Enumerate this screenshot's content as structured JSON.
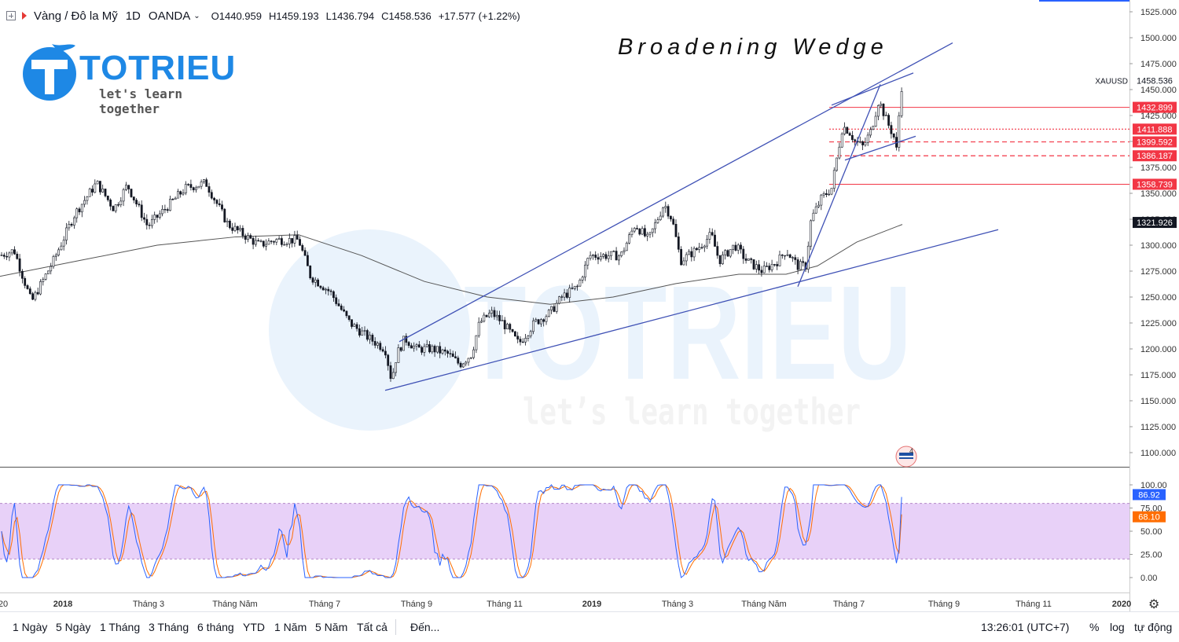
{
  "header": {
    "symbol": "Vàng / Đô la Mỹ",
    "timeframe": "1D",
    "broker": "OANDA",
    "open": "O1440.959",
    "high": "H1459.193",
    "low": "L1436.794",
    "close": "C1458.536",
    "change": "+17.577 (+1.22%)"
  },
  "logo": {
    "name": "TOTRIEU",
    "tagline": "let's learn together"
  },
  "watermark": {
    "name": "TOTRIEU",
    "tagline": "let’s learn together"
  },
  "annotation_title": "Broadening Wedge",
  "chart_data": {
    "type": "candlestick",
    "symbol_label": "XAUUSD",
    "last_price": 1458.536,
    "price_axis": {
      "ylim": [
        1088,
        1530
      ],
      "ticks": [
        1100,
        1125,
        1150,
        1175,
        1200,
        1225,
        1250,
        1275,
        1300,
        1325,
        1350,
        1375,
        1400,
        1425,
        1450,
        1475,
        1500,
        1525
      ]
    },
    "x_ticks": [
      "20",
      "2018",
      "Tháng 3",
      "Tháng Năm",
      "Tháng 7",
      "Tháng 9",
      "Tháng 11",
      "2019",
      "Tháng 3",
      "Tháng Năm",
      "Tháng 7",
      "Tháng 9",
      "Tháng 11",
      "2020"
    ],
    "price_path": [
      [
        0,
        1290
      ],
      [
        18,
        1295
      ],
      [
        40,
        1245
      ],
      [
        68,
        1285
      ],
      [
        95,
        1330
      ],
      [
        123,
        1360
      ],
      [
        145,
        1335
      ],
      [
        162,
        1358
      ],
      [
        188,
        1318
      ],
      [
        210,
        1335
      ],
      [
        236,
        1355
      ],
      [
        262,
        1360
      ],
      [
        290,
        1320
      ],
      [
        310,
        1310
      ],
      [
        330,
        1300
      ],
      [
        350,
        1305
      ],
      [
        380,
        1305
      ],
      [
        395,
        1270
      ],
      [
        420,
        1255
      ],
      [
        445,
        1225
      ],
      [
        470,
        1210
      ],
      [
        490,
        1200
      ],
      [
        498,
        1170
      ],
      [
        505,
        1195
      ],
      [
        515,
        1210
      ],
      [
        530,
        1200
      ],
      [
        550,
        1200
      ],
      [
        570,
        1195
      ],
      [
        585,
        1185
      ],
      [
        600,
        1195
      ],
      [
        610,
        1225
      ],
      [
        625,
        1235
      ],
      [
        640,
        1225
      ],
      [
        660,
        1205
      ],
      [
        680,
        1225
      ],
      [
        700,
        1235
      ],
      [
        715,
        1250
      ],
      [
        735,
        1260
      ],
      [
        750,
        1290
      ],
      [
        770,
        1290
      ],
      [
        790,
        1290
      ],
      [
        808,
        1320
      ],
      [
        825,
        1305
      ],
      [
        845,
        1340
      ],
      [
        855,
        1325
      ],
      [
        866,
        1285
      ],
      [
        885,
        1295
      ],
      [
        905,
        1310
      ],
      [
        915,
        1285
      ],
      [
        935,
        1300
      ],
      [
        950,
        1285
      ],
      [
        970,
        1275
      ],
      [
        990,
        1285
      ],
      [
        1000,
        1295
      ],
      [
        1015,
        1280
      ],
      [
        1025,
        1280
      ],
      [
        1032,
        1325
      ],
      [
        1045,
        1345
      ],
      [
        1058,
        1355
      ],
      [
        1065,
        1385
      ],
      [
        1072,
        1415
      ],
      [
        1080,
        1410
      ],
      [
        1088,
        1400
      ],
      [
        1098,
        1395
      ],
      [
        1108,
        1410
      ],
      [
        1118,
        1440
      ],
      [
        1128,
        1420
      ],
      [
        1137,
        1405
      ],
      [
        1141,
        1390
      ],
      [
        1145,
        1440
      ],
      [
        1148,
        1458
      ]
    ],
    "sma_path": [
      [
        0,
        1270
      ],
      [
        100,
        1285
      ],
      [
        200,
        1300
      ],
      [
        300,
        1308
      ],
      [
        380,
        1310
      ],
      [
        460,
        1290
      ],
      [
        540,
        1265
      ],
      [
        620,
        1250
      ],
      [
        700,
        1243
      ],
      [
        780,
        1250
      ],
      [
        860,
        1263
      ],
      [
        940,
        1272
      ],
      [
        1000,
        1272
      ],
      [
        1040,
        1280
      ],
      [
        1090,
        1303
      ],
      [
        1148,
        1320
      ]
    ],
    "trendlines": [
      [
        [
          490,
          1160
        ],
        [
          1270,
          1315
        ]
      ],
      [
        [
          508,
          1207
        ],
        [
          1212,
          1495
        ]
      ],
      [
        [
          1015,
          1260
        ],
        [
          1120,
          1455
        ]
      ],
      [
        [
          1058,
          1435
        ],
        [
          1162,
          1466
        ]
      ],
      [
        [
          1075,
          1382
        ],
        [
          1165,
          1405
        ]
      ]
    ],
    "price_levels": [
      {
        "value": 1432.899,
        "label": "1432.899",
        "style": "solid",
        "color": "#f23645"
      },
      {
        "value": 1411.888,
        "label": "1411.888",
        "style": "dotted",
        "color": "#f23645"
      },
      {
        "value": 1399.592,
        "label": "1399.592",
        "style": "dashed",
        "color": "#f23645"
      },
      {
        "value": 1386.187,
        "label": "1386.187",
        "style": "dashed",
        "color": "#f23645"
      },
      {
        "value": 1358.739,
        "label": "1358.739",
        "style": "solid",
        "color": "#f23645"
      },
      {
        "value": 1321.926,
        "label": "1321.926",
        "style": "none",
        "color": "#131722"
      }
    ],
    "oscillator": {
      "ylim": [
        -8,
        110
      ],
      "ticks": [
        0,
        25,
        50,
        75,
        100
      ],
      "band": [
        20,
        80
      ],
      "value_k": 86.92,
      "value_d": 68.1,
      "k_label": "86.92",
      "d_label": "68.10"
    }
  },
  "colors": {
    "up": "#131722",
    "trendline": "#3f51b5",
    "level": "#f23645",
    "band": "#e1bee7",
    "k_line": "#2962ff",
    "d_line": "#ff6d00",
    "logo": "#1e88e5"
  },
  "toolbar": {
    "ranges": [
      "1 Ngày",
      "5 Ngày",
      "1 Tháng",
      "3 Tháng",
      "6 tháng",
      "YTD",
      "1 Năm",
      "5 Năm",
      "Tất cả"
    ],
    "goto": "Đến...",
    "clock": "13:26:01 (UTC+7)",
    "percent": "%",
    "log": "log",
    "auto": "tự động"
  },
  "icons": [
    "expand-icon",
    "flag-icon",
    "chevron-down-icon",
    "gear-icon",
    "event-flag-icon"
  ]
}
